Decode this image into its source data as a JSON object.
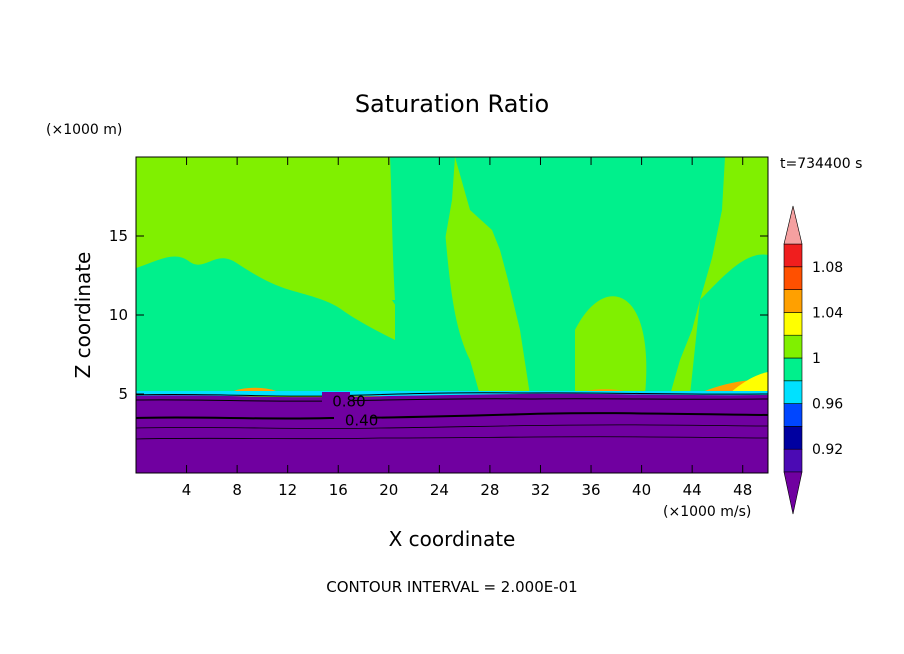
{
  "chart_data": {
    "type": "heatmap",
    "title": "Saturation Ratio",
    "xlabel": "X coordinate",
    "ylabel": "Z coordinate",
    "x_unit": "(×1000 m/s)",
    "y_unit": "(×1000 m)",
    "time_label": "t=734400 s",
    "footer": "CONTOUR INTERVAL = 2.000E-01",
    "xlim": [
      0,
      50
    ],
    "ylim": [
      0,
      20
    ],
    "x_ticks": [
      4,
      8,
      12,
      16,
      20,
      24,
      28,
      32,
      36,
      40,
      44,
      48
    ],
    "x_tick_labels": [
      "4",
      "8",
      "12",
      "16",
      "20",
      "24",
      "28",
      "32",
      "36",
      "40",
      "44",
      "48"
    ],
    "y_ticks": [
      5,
      10,
      15
    ],
    "y_tick_labels": [
      "5",
      "10",
      "15"
    ],
    "contour_labels": [
      {
        "text": "0.80",
        "x": 16,
        "z": 4.6
      },
      {
        "text": "0.40",
        "x": 17,
        "z": 3.4
      }
    ],
    "colorbar": {
      "levels": [
        0.9,
        0.92,
        0.94,
        0.96,
        0.98,
        1.0,
        1.02,
        1.04,
        1.06,
        1.08,
        1.1
      ],
      "tick_labels": [
        "0.92",
        "0.96",
        "1",
        "1.04",
        "1.08"
      ],
      "tick_values": [
        0.92,
        0.96,
        1.0,
        1.04,
        1.08
      ],
      "colors": [
        "#4b0ab4",
        "#0000a0",
        "#0046ff",
        "#00e1ff",
        "#00f08c",
        "#80f000",
        "#ffff00",
        "#ffa000",
        "#ff5000",
        "#f01e1e"
      ],
      "under_color": "#7000a0",
      "over_color": "#f5a0a0"
    },
    "regions": {
      "boundary_layer_top_z": 5,
      "dominant_color": "#80f000",
      "band_color": "#00f08c",
      "lower_color": "#7000a0"
    }
  }
}
